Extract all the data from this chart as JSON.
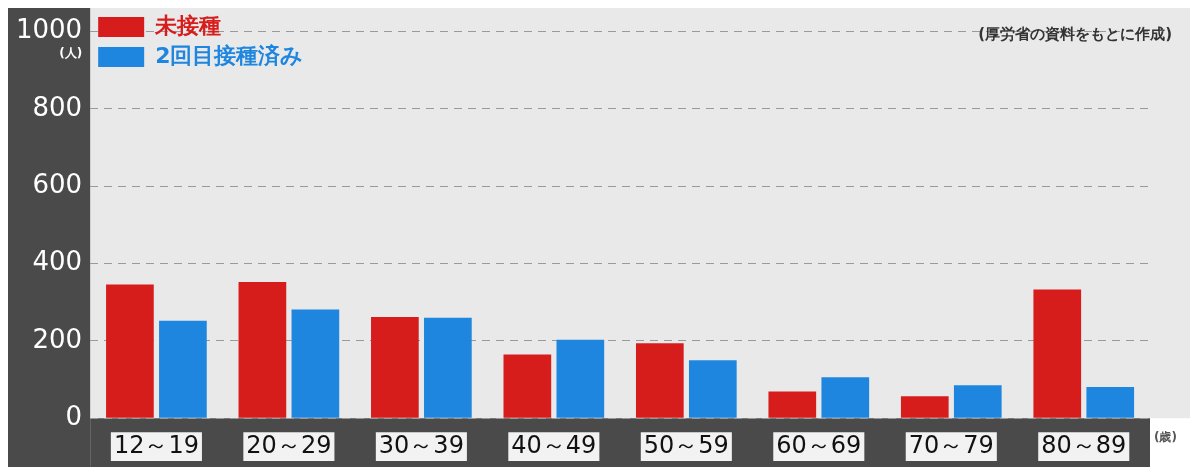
{
  "chart_data": {
    "type": "bar",
    "ylabel": "(人)",
    "xlabel": "(歳)",
    "annotations": [
      "(厚労省の資料をもとに作成)"
    ],
    "categories": [
      "12～19",
      "20～29",
      "30～39",
      "40～49",
      "50～59",
      "60～69",
      "70～79",
      "80～89"
    ],
    "series": [
      {
        "name": "未接種",
        "color": "#d71c1c",
        "values": [
          346,
          352,
          262,
          165,
          194,
          69,
          57,
          333
        ]
      },
      {
        "name": "2回目接種済み",
        "color": "#1f86e0",
        "values": [
          252,
          281,
          260,
          203,
          150,
          106,
          85,
          81
        ]
      }
    ],
    "ylim": [
      0,
      1000
    ],
    "yticks": [
      0,
      200,
      400,
      600,
      800,
      1000
    ],
    "grid": "y",
    "legend": "top left"
  }
}
